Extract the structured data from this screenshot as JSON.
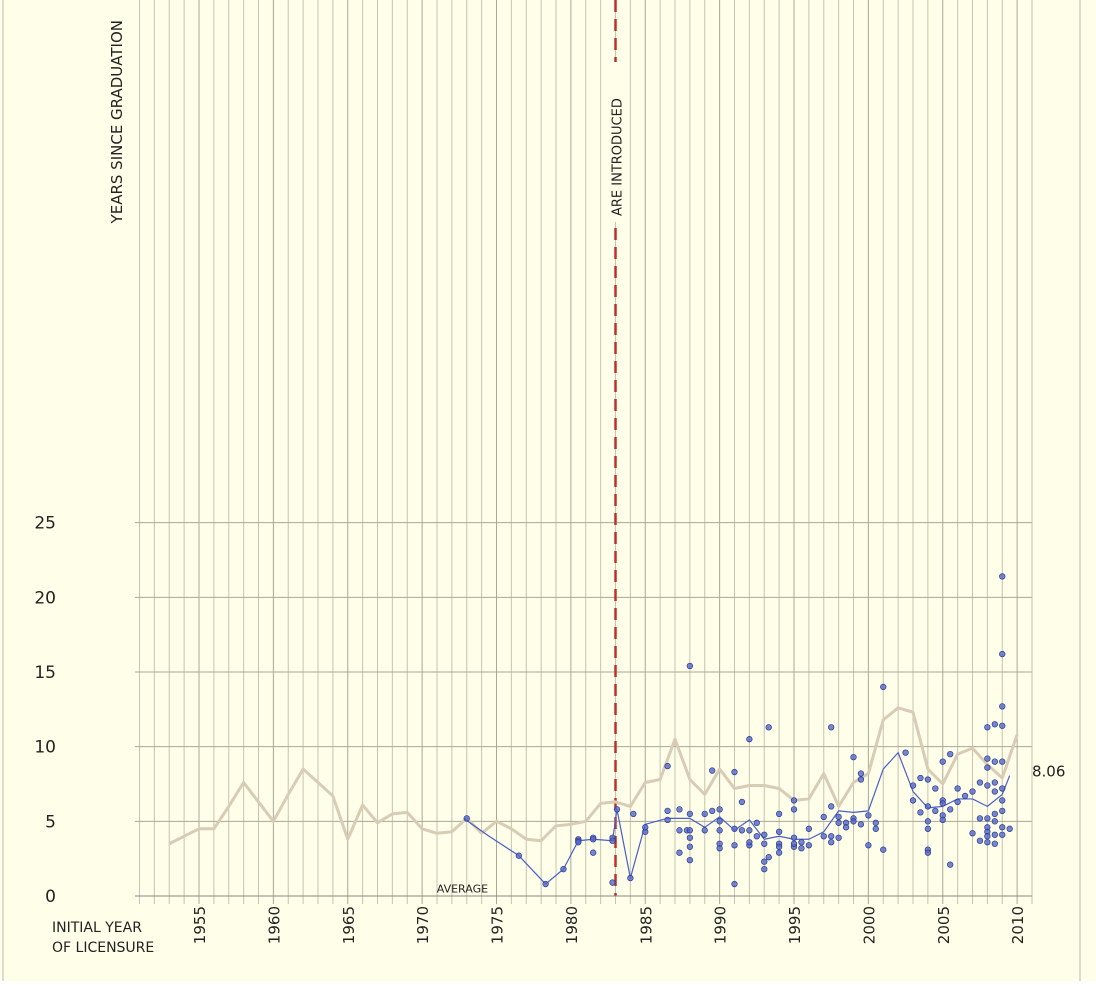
{
  "chart_data": {
    "type": "line",
    "y_label": "YEARS SINCE GRADUATION",
    "x_label": [
      "INITIAL YEAR",
      "OF LICENSURE"
    ],
    "xlim": [
      1951,
      2011
    ],
    "ylim": [
      0,
      60
    ],
    "xticks": [
      1955,
      1960,
      1965,
      1970,
      1975,
      1980,
      1985,
      1990,
      1995,
      2000,
      2005,
      2010
    ],
    "yticks": [
      0,
      5,
      10,
      15,
      20,
      25
    ],
    "grid": true,
    "reference_line": {
      "x": 1983,
      "label": "ARE INTRODUCED",
      "color": "#c0302a"
    },
    "series": [
      {
        "type": "line",
        "color": "#d8ccb4",
        "x": [
          1953,
          1954,
          1955,
          1956,
          1957,
          1958,
          1959,
          1960,
          1961,
          1962,
          1963,
          1964,
          1965,
          1966,
          1967,
          1968,
          1969,
          1970,
          1971,
          1972,
          1973,
          1974,
          1975,
          1976,
          1977,
          1978,
          1979,
          1980,
          1981,
          1982,
          1983,
          1984,
          1985,
          1986,
          1987,
          1988,
          1989,
          1990,
          1991,
          1992,
          1993,
          1994,
          1995,
          1996,
          1997,
          1998,
          1999,
          2000,
          2001,
          2002,
          2003,
          2004,
          2005,
          2006,
          2007,
          2008,
          2009,
          2010
        ],
        "values": [
          3.5,
          4.0,
          4.5,
          4.5,
          6.0,
          7.6,
          6.3,
          5.0,
          6.8,
          8.5,
          7.6,
          6.7,
          3.8,
          6.1,
          4.9,
          5.5,
          5.6,
          4.5,
          4.2,
          4.3,
          5.2,
          4.2,
          5.0,
          4.5,
          3.8,
          3.7,
          4.7,
          4.8,
          5.0,
          6.2,
          6.3,
          6.0,
          7.6,
          7.8,
          10.5,
          7.8,
          6.8,
          8.5,
          7.2,
          7.4,
          7.4,
          7.2,
          6.4,
          6.5,
          8.2,
          6.0,
          7.6,
          8.2,
          11.8,
          12.6,
          12.3,
          8.5,
          7.5,
          9.5,
          9.9,
          8.8,
          7.9,
          10.8
        ]
      },
      {
        "type": "line",
        "color": "#4a5fc8",
        "label": "AVERAGE",
        "x": [
          1972.8,
          1974.5,
          1976.5,
          1978.3,
          1979.5,
          1980.5,
          1981.5,
          1982.8,
          1983.1,
          1984,
          1985,
          1986.5,
          1988,
          1989,
          1990,
          1991,
          1992,
          1993,
          1994,
          1995,
          1996,
          1997,
          1998,
          1999,
          2000,
          2001,
          2002,
          2003,
          2004,
          2005,
          2006,
          2007,
          2008,
          2009,
          2009.5
        ],
        "values": [
          5.2,
          4.0,
          2.7,
          0.8,
          1.8,
          3.7,
          3.8,
          3.7,
          5.8,
          1.2,
          4.8,
          5.2,
          5.2,
          4.6,
          5.3,
          4.4,
          5.1,
          3.8,
          4.0,
          3.8,
          3.8,
          4.3,
          5.7,
          5.6,
          5.7,
          8.5,
          9.6,
          7.0,
          5.9,
          6.0,
          6.5,
          6.5,
          6.0,
          6.8,
          8.06
        ],
        "value_labels": [
          null,
          null,
          null,
          null,
          null,
          null,
          null,
          null,
          null,
          null,
          null,
          null,
          null,
          null,
          null,
          null,
          null,
          null,
          null,
          null,
          null,
          null,
          null,
          null,
          null,
          null,
          null,
          null,
          null,
          null,
          null,
          null,
          null,
          null,
          "8.06"
        ]
      },
      {
        "type": "scatter",
        "color": "#5566c8",
        "x": [
          1973,
          1976.5,
          1978.3,
          1979.5,
          1980.5,
          1980.5,
          1980.5,
          1981.5,
          1981.5,
          1981.5,
          1982.8,
          1982.8,
          1982.8,
          1983.1,
          1984,
          1984.2,
          1985,
          1985,
          1986.5,
          1986.5,
          1986.5,
          1987.3,
          1987.3,
          1987.3,
          1987.8,
          1988,
          1988,
          1988,
          1988,
          1988,
          1988,
          1989,
          1989,
          1989.5,
          1989.5,
          1990,
          1990,
          1990,
          1990,
          1990,
          1991,
          1991,
          1991,
          1991,
          1991.5,
          1991.5,
          1992,
          1992,
          1992,
          1992,
          1992.5,
          1992.5,
          1993,
          1993,
          1993,
          1993,
          1993.3,
          1993.3,
          1994,
          1994,
          1994,
          1994,
          1994,
          1995,
          1995,
          1995,
          1995,
          1995,
          1995.5,
          1995.5,
          1996,
          1996,
          1997,
          1997,
          1997.5,
          1997.5,
          1997.5,
          1997.5,
          1998,
          1998,
          1998,
          1998.5,
          1998.5,
          1999,
          1999,
          1999,
          1999.5,
          1999.5,
          1999.5,
          2000,
          2000,
          2000.5,
          2000.5,
          2001,
          2001,
          2002.5,
          2003,
          2003,
          2003.5,
          2003.5,
          2004,
          2004,
          2004,
          2004,
          2004,
          2004,
          2004.5,
          2004.5,
          2005,
          2005,
          2005,
          2005,
          2005,
          2005.5,
          2005.5,
          2005.5,
          2006,
          2006,
          2006.5,
          2007,
          2007,
          2007.5,
          2007.5,
          2007.5,
          2008,
          2008,
          2008,
          2008,
          2008,
          2008,
          2008,
          2008,
          2008,
          2008.5,
          2008.5,
          2008.5,
          2008.5,
          2008.5,
          2008.5,
          2008.5,
          2008.5,
          2009,
          2009,
          2009,
          2009,
          2009,
          2009,
          2009,
          2009,
          2009,
          2009,
          2009.5
        ],
        "values": [
          5.2,
          2.7,
          0.8,
          1.8,
          3.8,
          3.7,
          3.6,
          3.9,
          3.8,
          2.9,
          3.9,
          3.7,
          0.9,
          5.8,
          1.2,
          5.5,
          4.3,
          4.6,
          8.7,
          5.7,
          5.1,
          5.8,
          4.4,
          2.9,
          4.4,
          15.4,
          5.5,
          4.4,
          3.3,
          2.4,
          3.9,
          4.4,
          5.5,
          5.7,
          8.4,
          5.8,
          5.0,
          3.5,
          3.2,
          4.4,
          8.3,
          4.5,
          3.4,
          0.8,
          6.3,
          4.4,
          10.5,
          4.4,
          3.4,
          3.6,
          4.9,
          4.0,
          3.5,
          2.3,
          1.8,
          4.1,
          11.3,
          2.6,
          5.5,
          3.5,
          3.3,
          4.3,
          2.9,
          6.4,
          5.8,
          3.9,
          3.3,
          3.5,
          3.6,
          3.2,
          4.5,
          3.4,
          5.3,
          4.0,
          11.3,
          6.0,
          4.0,
          3.6,
          5.3,
          3.9,
          4.9,
          4.9,
          4.6,
          9.3,
          5.2,
          5.0,
          8.2,
          7.8,
          4.8,
          5.4,
          3.4,
          4.9,
          4.5,
          14.0,
          3.1,
          9.6,
          7.4,
          6.4,
          7.9,
          5.6,
          7.8,
          6.0,
          5.0,
          4.5,
          3.1,
          2.9,
          7.2,
          5.7,
          9.0,
          6.4,
          6.2,
          5.4,
          5.1,
          9.5,
          5.8,
          2.1,
          7.2,
          6.3,
          6.7,
          7.0,
          4.2,
          7.6,
          3.7,
          5.2,
          11.3,
          9.2,
          8.6,
          7.4,
          5.2,
          4.6,
          4.3,
          3.6,
          4.0,
          11.5,
          9.0,
          7.6,
          7.0,
          5.5,
          5.0,
          4.1,
          3.5,
          21.4,
          16.2,
          12.7,
          11.4,
          9.0,
          7.2,
          6.4,
          5.7,
          4.6,
          4.1,
          4.5
        ]
      }
    ]
  }
}
